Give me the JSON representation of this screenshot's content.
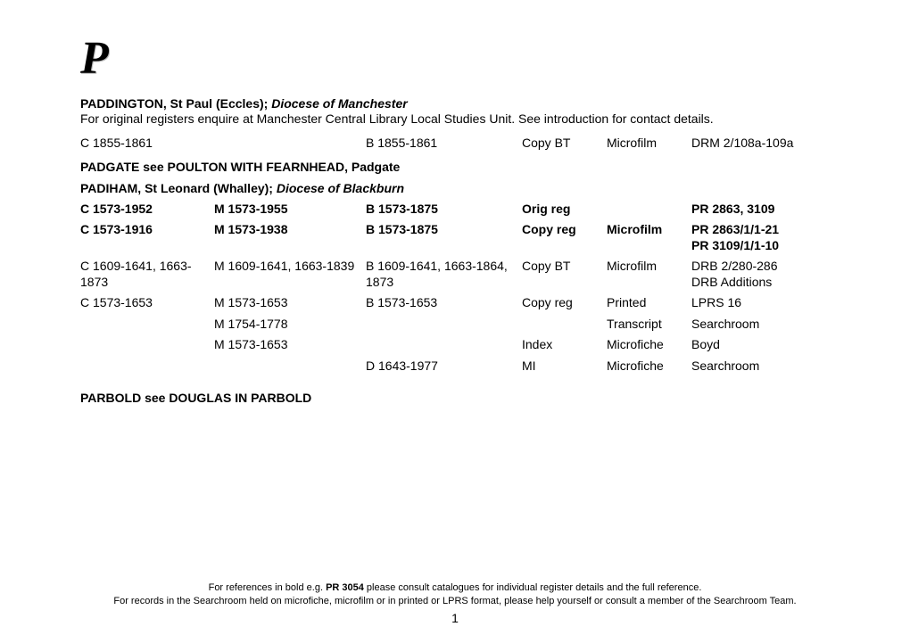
{
  "page_letter": "P",
  "entries": [
    {
      "title_parts": {
        "bold": "PADDINGTON, St Paul (Eccles);  ",
        "ital": "Diocese of Manchester"
      },
      "note": "For original registers enquire at Manchester Central Library Local Studies Unit.  See introduction for contact details.",
      "rows": [
        {
          "c1": "C 1855-1861",
          "c2": "",
          "c3": "B 1855-1861",
          "c4": "Copy BT",
          "c5": "Microfilm",
          "c6": "DRM 2/108a-109a",
          "bold": false
        }
      ]
    }
  ],
  "xref1": "PADGATE see POULTON WITH FEARNHEAD, Padgate",
  "entry2": {
    "title_parts": {
      "bold": "PADIHAM, St Leonard (Whalley);  ",
      "ital": "Diocese of Blackburn"
    },
    "rows": [
      {
        "c1": "C 1573-1952",
        "c2": "M 1573-1955",
        "c3": "B 1573-1875",
        "c4": "Orig reg",
        "c5": "",
        "c6": "PR 2863, 3109",
        "bold": true
      },
      {
        "c1": "C 1573-1916",
        "c2": "M 1573-1938",
        "c3": "B 1573-1875",
        "c4": "Copy reg",
        "c5": "Microfilm",
        "c6": "PR 2863/1/1-21\nPR 3109/1/1-10",
        "bold": true
      },
      {
        "c1": "C 1609-1641, 1663-1873",
        "c2": "M 1609-1641, 1663-1839",
        "c3": "B 1609-1641, 1663-1864, 1873",
        "c4": "Copy BT",
        "c5": "Microfilm",
        "c6": "DRB 2/280-286\nDRB Additions",
        "bold": false
      },
      {
        "c1": "C 1573-1653",
        "c2": "M 1573-1653",
        "c3": "B 1573-1653",
        "c4": "Copy reg",
        "c5": "Printed",
        "c6": "LPRS 16",
        "bold": false
      },
      {
        "c1": "",
        "c2": "M 1754-1778",
        "c3": "",
        "c4": "",
        "c5": "Transcript",
        "c6": "Searchroom",
        "bold": false
      },
      {
        "c1": "",
        "c2": "M 1573-1653",
        "c3": "",
        "c4": "Index",
        "c5": "Microfiche",
        "c6": "Boyd",
        "bold": false
      },
      {
        "c1": "",
        "c2": "",
        "c3": "D 1643-1977",
        "c4": "MI",
        "c5": "Microfiche",
        "c6": "Searchroom",
        "bold": false
      }
    ]
  },
  "xref2": "PARBOLD see DOUGLAS IN PARBOLD",
  "footer": {
    "line1_a": "For references in bold e.g. ",
    "line1_b": "PR 3054",
    "line1_c": " please consult catalogues for individual register details and the full reference.",
    "line2": "For records in the Searchroom held on microfiche, microfilm or in printed or LPRS format, please help yourself or consult a member of the Searchroom Team.",
    "pagenum": "1"
  }
}
